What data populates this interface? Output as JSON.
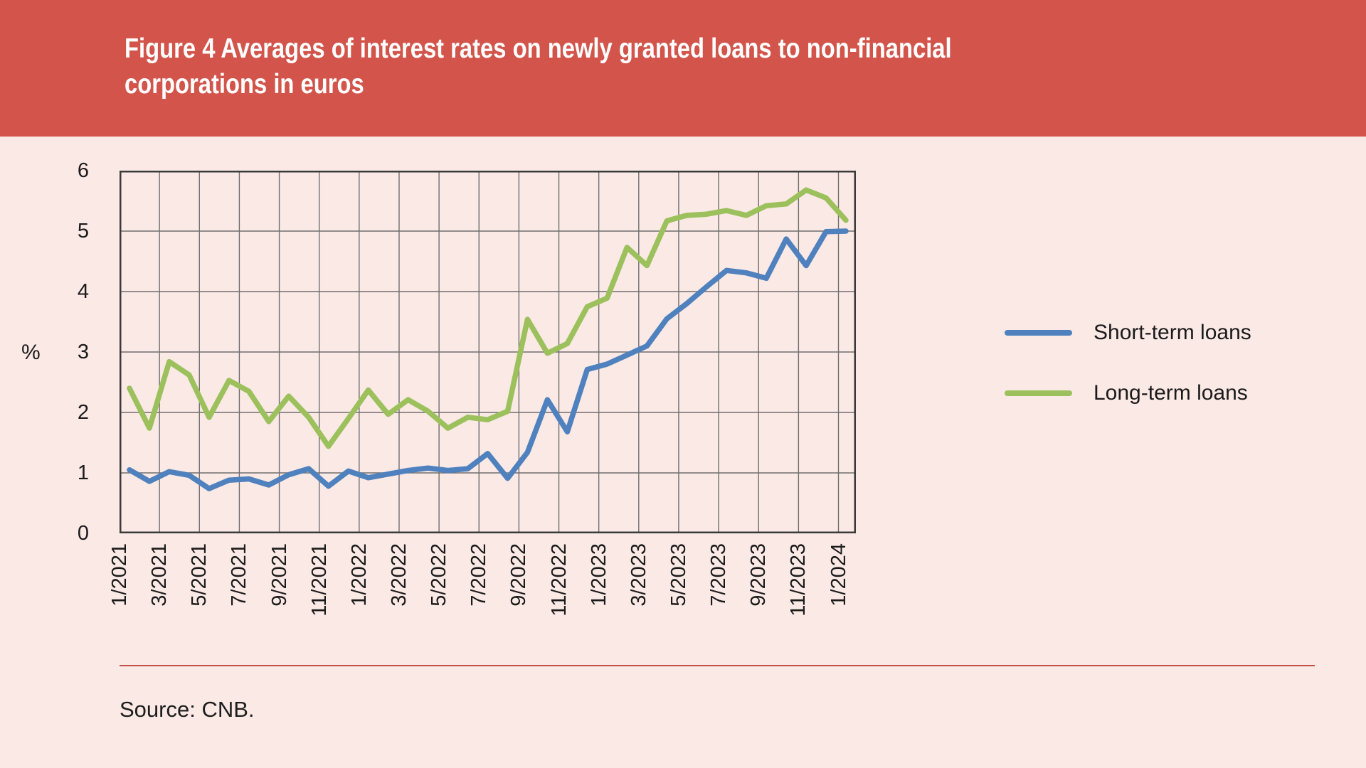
{
  "header": {
    "title": "Figure 4 Averages of interest rates on newly granted loans to non-financial\ncorporations in euros",
    "background_color": "#D2544A",
    "text_color": "#FFFFFF"
  },
  "chart_data": {
    "type": "line",
    "title": "Figure 4 Averages of interest rates on newly granted loans to non-financial corporations in euros",
    "xlabel": "",
    "ylabel": "%",
    "ylim": [
      0,
      6
    ],
    "yticks": [
      0,
      1,
      2,
      3,
      4,
      5,
      6
    ],
    "grid": true,
    "legend_position": "right",
    "x_tick_labels": [
      "1/2021",
      "3/2021",
      "5/2021",
      "7/2021",
      "9/2021",
      "11/2021",
      "1/2022",
      "3/2022",
      "5/2022",
      "7/2022",
      "9/2022",
      "11/2022",
      "1/2023",
      "3/2023",
      "5/2023",
      "7/2023",
      "9/2023",
      "11/2023",
      "1/2024"
    ],
    "categories": [
      "1/2021",
      "2/2021",
      "3/2021",
      "4/2021",
      "5/2021",
      "6/2021",
      "7/2021",
      "8/2021",
      "9/2021",
      "10/2021",
      "11/2021",
      "12/2021",
      "1/2022",
      "2/2022",
      "3/2022",
      "4/2022",
      "5/2022",
      "6/2022",
      "7/2022",
      "8/2022",
      "9/2022",
      "10/2022",
      "11/2022",
      "12/2022",
      "1/2023",
      "2/2023",
      "3/2023",
      "4/2023",
      "5/2023",
      "6/2023",
      "7/2023",
      "8/2023",
      "9/2023",
      "10/2023",
      "11/2023",
      "12/2023",
      "1/2024"
    ],
    "series": [
      {
        "name": "Short-term loans",
        "color": "#4E81BD",
        "values": [
          1.05,
          0.86,
          1.02,
          0.96,
          0.74,
          0.88,
          0.9,
          0.8,
          0.97,
          1.07,
          0.78,
          1.03,
          0.92,
          0.98,
          1.04,
          1.08,
          1.04,
          1.07,
          1.32,
          0.91,
          1.34,
          2.21,
          1.68,
          2.71,
          2.8,
          2.95,
          3.1,
          3.55,
          3.8,
          4.08,
          4.35,
          4.31,
          4.22,
          4.87,
          4.43,
          4.99,
          5.0
        ]
      },
      {
        "name": "Long-term loans",
        "color": "#9CC15C",
        "values": [
          2.4,
          1.74,
          2.84,
          2.62,
          1.92,
          2.53,
          2.35,
          1.85,
          2.27,
          1.92,
          1.44,
          1.9,
          2.37,
          1.97,
          2.21,
          2.02,
          1.74,
          1.92,
          1.88,
          2.02,
          3.54,
          2.98,
          3.14,
          3.75,
          3.89,
          4.73,
          4.43,
          5.17,
          5.26,
          5.28,
          5.34,
          5.26,
          5.42,
          5.45,
          5.68,
          5.55,
          5.18
        ]
      }
    ],
    "plot_style": {
      "frame_color": "#3A3A3A",
      "gridline_color": "#6F6F6F",
      "background": "#FAE9E5"
    }
  },
  "footer": {
    "source_label": "Source: CNB."
  }
}
